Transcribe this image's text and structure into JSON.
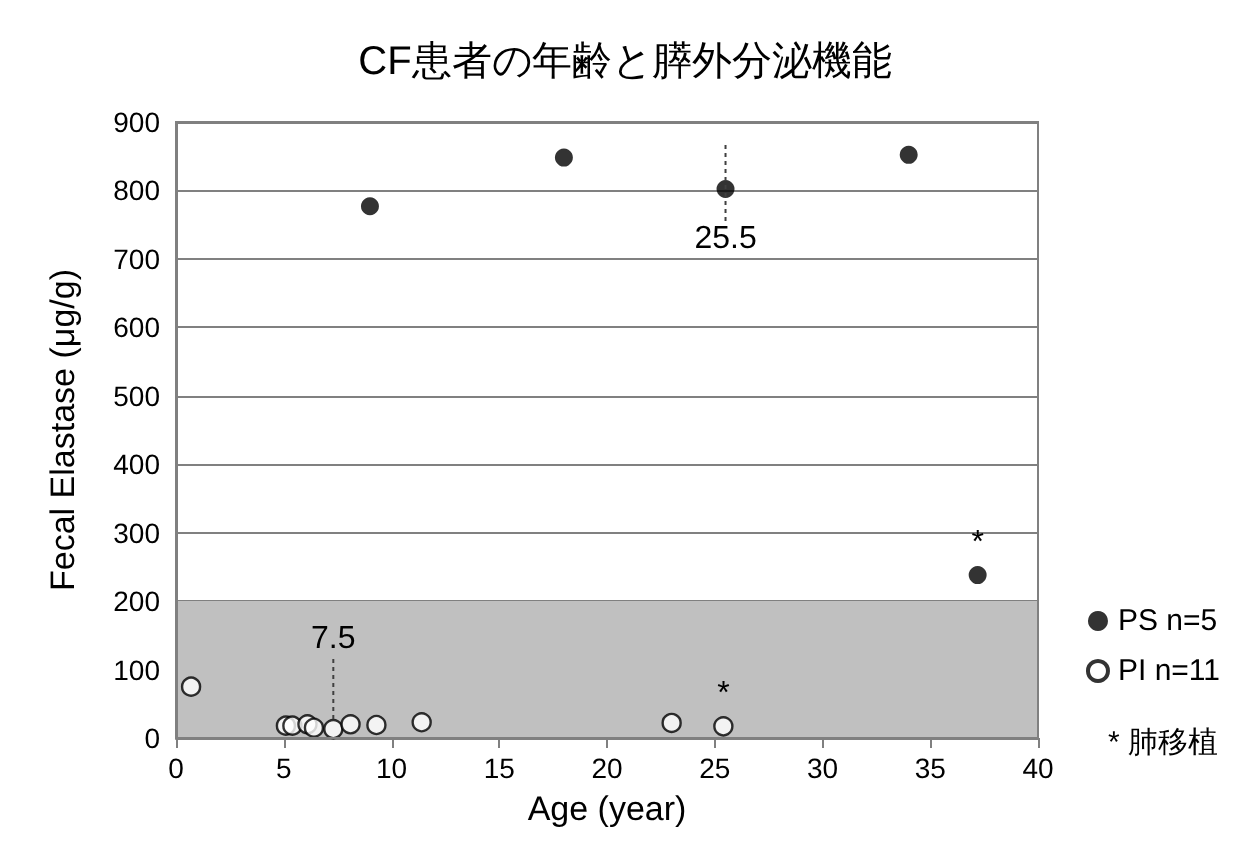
{
  "chart_data": {
    "type": "scatter",
    "title": "CF患者の年齢と膵外分泌機能",
    "xlabel": "Age (year)",
    "ylabel": "Fecal Elastase (μg/g)",
    "xlim": [
      0,
      40
    ],
    "xticks": [
      0,
      5,
      10,
      15,
      20,
      25,
      30,
      35,
      40
    ],
    "ylim": [
      0,
      900
    ],
    "yticks": [
      0,
      100,
      200,
      300,
      400,
      500,
      600,
      700,
      800,
      900
    ],
    "grid": "y",
    "legend": "right",
    "marker": "circle",
    "bands": [
      {
        "axis": "y",
        "from": 0,
        "to": 200,
        "color": "#c0c0c0"
      }
    ],
    "series": [
      {
        "name": "PS n=5",
        "color": "#000000",
        "x": [
          9,
          18,
          25.5,
          34,
          37.2
        ],
        "values": [
          777,
          848,
          802,
          852,
          238
        ]
      },
      {
        "name": "PI n=11",
        "color": "#ffffff",
        "x": [
          0.7,
          5.1,
          5.4,
          6.1,
          6.4,
          7.3,
          8.1,
          9.3,
          11.4,
          23,
          25.4
        ],
        "values": [
          75,
          18,
          18,
          20,
          15,
          13,
          20,
          19,
          23,
          22,
          17
        ]
      }
    ],
    "annotations": [
      {
        "text": "7.5",
        "x": 7.3,
        "y": 13
      },
      {
        "text": "25.5",
        "x": 25.5,
        "y": 802
      },
      {
        "text": "*",
        "x": 37.2,
        "y": 238
      },
      {
        "text": "*",
        "x": 25.4,
        "y": 17
      },
      "* 肺移植"
    ]
  }
}
